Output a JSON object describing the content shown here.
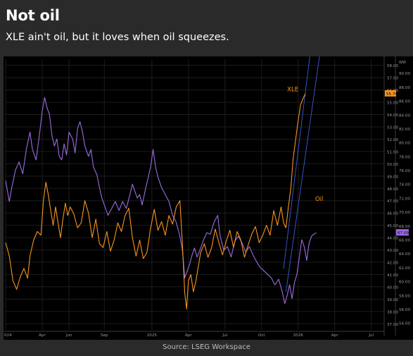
{
  "header": {
    "title": "Not oil",
    "subtitle": "XLE ain't oil, but it loves when oil squeezes."
  },
  "footer": {
    "source": "Source: LSEG Workspace"
  },
  "colors": {
    "background": "#2a2a2a",
    "chart_bg": "#000000",
    "xle": "#f7941d",
    "oil": "#9a6ce0",
    "trend": "#3a5bd9"
  },
  "chart_data": {
    "type": "line",
    "xlabel": "",
    "x_ticks": [
      "024",
      "Apr",
      "Jun",
      "Sep",
      "2025",
      "Apr",
      "Jul",
      "Oct",
      "2026",
      "Apr",
      "Jul"
    ],
    "x_range_months": [
      0,
      31
    ],
    "grid": true,
    "y_left_axis": {
      "side": "right-inner",
      "range": [
        36.5,
        58.5
      ],
      "ticks": [
        "37.00",
        "38.00",
        "39.00",
        "40.00",
        "41.00",
        "42.00",
        "43.00",
        "44.00",
        "45.00",
        "46.00",
        "47.00",
        "48.00",
        "49.00",
        "50.00",
        "51.00",
        "52.00",
        "53.00",
        "54.00",
        "55.00",
        "56.00",
        "57.00",
        "58.00"
      ]
    },
    "y_right_axis": {
      "side": "right-outer",
      "range": [
        53,
        92
      ],
      "ticks": [
        "54.00",
        "56.00",
        "58.00",
        "60.00",
        "62.00",
        "64.00",
        "66.00",
        "68.00",
        "70.00",
        "72.00",
        "74.00",
        "76.00",
        "78.00",
        "80.00",
        "82.00",
        "84.00",
        "86.00",
        "88.00",
        "90.00"
      ],
      "header": "WW"
    },
    "series": [
      {
        "name": "XLE",
        "axis": "left",
        "last_value_label": "55.70",
        "points": [
          [
            0,
            43.6
          ],
          [
            0.3,
            42.5
          ],
          [
            0.6,
            40.5
          ],
          [
            0.9,
            39.8
          ],
          [
            1.2,
            40.8
          ],
          [
            1.5,
            41.5
          ],
          [
            1.8,
            40.7
          ],
          [
            2.0,
            42.5
          ],
          [
            2.3,
            43.8
          ],
          [
            2.6,
            44.5
          ],
          [
            2.9,
            44.2
          ],
          [
            3.1,
            47.0
          ],
          [
            3.3,
            48.5
          ],
          [
            3.5,
            47.5
          ],
          [
            3.7,
            46.2
          ],
          [
            3.9,
            45.0
          ],
          [
            4.1,
            46.5
          ],
          [
            4.3,
            45.2
          ],
          [
            4.5,
            44.0
          ],
          [
            4.7,
            45.5
          ],
          [
            4.9,
            46.8
          ],
          [
            5.1,
            45.8
          ],
          [
            5.3,
            46.5
          ],
          [
            5.6,
            45.9
          ],
          [
            5.9,
            44.8
          ],
          [
            6.2,
            45.2
          ],
          [
            6.5,
            47.0
          ],
          [
            6.8,
            46.0
          ],
          [
            7.1,
            44.0
          ],
          [
            7.4,
            45.5
          ],
          [
            7.7,
            43.5
          ],
          [
            8.0,
            43.2
          ],
          [
            8.3,
            44.5
          ],
          [
            8.6,
            42.9
          ],
          [
            8.9,
            43.8
          ],
          [
            9.2,
            45.2
          ],
          [
            9.5,
            44.5
          ],
          [
            9.8,
            45.8
          ],
          [
            10.1,
            46.4
          ],
          [
            10.4,
            44.0
          ],
          [
            10.7,
            42.5
          ],
          [
            11.0,
            43.8
          ],
          [
            11.3,
            42.3
          ],
          [
            11.6,
            42.8
          ],
          [
            11.9,
            44.8
          ],
          [
            12.2,
            46.3
          ],
          [
            12.5,
            44.6
          ],
          [
            12.8,
            45.3
          ],
          [
            13.1,
            44.2
          ],
          [
            13.4,
            45.8
          ],
          [
            13.7,
            45.1
          ],
          [
            14.0,
            46.5
          ],
          [
            14.3,
            47.0
          ],
          [
            14.5,
            43.5
          ],
          [
            14.7,
            39.5
          ],
          [
            14.85,
            38.2
          ],
          [
            15.0,
            40.5
          ],
          [
            15.2,
            41.0
          ],
          [
            15.4,
            39.6
          ],
          [
            15.6,
            40.4
          ],
          [
            15.8,
            41.6
          ],
          [
            16.0,
            42.8
          ],
          [
            16.3,
            43.5
          ],
          [
            16.6,
            42.4
          ],
          [
            16.9,
            43.2
          ],
          [
            17.2,
            44.7
          ],
          [
            17.5,
            43.6
          ],
          [
            17.8,
            42.6
          ],
          [
            18.1,
            43.7
          ],
          [
            18.4,
            44.6
          ],
          [
            18.7,
            43.2
          ],
          [
            19.0,
            44.5
          ],
          [
            19.3,
            43.8
          ],
          [
            19.6,
            42.4
          ],
          [
            19.9,
            43.4
          ],
          [
            20.2,
            44.3
          ],
          [
            20.5,
            44.9
          ],
          [
            20.8,
            43.6
          ],
          [
            21.1,
            44.2
          ],
          [
            21.4,
            45.0
          ],
          [
            21.7,
            44.2
          ],
          [
            22.0,
            46.2
          ],
          [
            22.3,
            45.0
          ],
          [
            22.6,
            46.5
          ],
          [
            22.8,
            45.2
          ],
          [
            23.0,
            44.8
          ],
          [
            23.2,
            46.5
          ],
          [
            23.4,
            48.0
          ],
          [
            23.6,
            50.5
          ],
          [
            23.8,
            52.0
          ],
          [
            24.0,
            53.5
          ],
          [
            24.2,
            54.8
          ],
          [
            24.4,
            55.3
          ],
          [
            24.6,
            55.7
          ]
        ]
      },
      {
        "name": "Oil",
        "axis": "right",
        "points": [
          [
            0,
            74.5
          ],
          [
            0.3,
            71.5
          ],
          [
            0.5,
            73.5
          ],
          [
            0.8,
            76.0
          ],
          [
            1.1,
            77.2
          ],
          [
            1.4,
            75.5
          ],
          [
            1.7,
            79.0
          ],
          [
            2.0,
            81.5
          ],
          [
            2.2,
            79.0
          ],
          [
            2.5,
            77.5
          ],
          [
            2.8,
            81.5
          ],
          [
            3.0,
            84.5
          ],
          [
            3.2,
            86.5
          ],
          [
            3.4,
            85.0
          ],
          [
            3.6,
            84.0
          ],
          [
            3.8,
            81.0
          ],
          [
            4.0,
            79.5
          ],
          [
            4.2,
            80.5
          ],
          [
            4.4,
            78.0
          ],
          [
            4.6,
            77.5
          ],
          [
            4.8,
            79.8
          ],
          [
            5.0,
            78.2
          ],
          [
            5.2,
            81.5
          ],
          [
            5.5,
            80.5
          ],
          [
            5.7,
            78.5
          ],
          [
            5.9,
            82.0
          ],
          [
            6.1,
            83.0
          ],
          [
            6.3,
            81.6
          ],
          [
            6.5,
            79.5
          ],
          [
            6.8,
            78.0
          ],
          [
            7.0,
            79.0
          ],
          [
            7.2,
            76.5
          ],
          [
            7.5,
            75.3
          ],
          [
            7.7,
            73.5
          ],
          [
            7.9,
            72.0
          ],
          [
            8.1,
            71.0
          ],
          [
            8.4,
            69.5
          ],
          [
            8.7,
            70.5
          ],
          [
            9.0,
            71.5
          ],
          [
            9.3,
            70.2
          ],
          [
            9.6,
            71.5
          ],
          [
            9.9,
            70.5
          ],
          [
            10.2,
            72.5
          ],
          [
            10.4,
            74.0
          ],
          [
            10.6,
            73.0
          ],
          [
            10.8,
            72.0
          ],
          [
            11.0,
            72.5
          ],
          [
            11.2,
            71.0
          ],
          [
            11.5,
            73.5
          ],
          [
            11.7,
            75.0
          ],
          [
            11.9,
            76.5
          ],
          [
            12.1,
            79.0
          ],
          [
            12.3,
            76.5
          ],
          [
            12.5,
            75.0
          ],
          [
            12.8,
            73.5
          ],
          [
            13.1,
            72.5
          ],
          [
            13.4,
            71.5
          ],
          [
            13.7,
            69.5
          ],
          [
            14.0,
            68.5
          ],
          [
            14.3,
            66.5
          ],
          [
            14.5,
            64.5
          ],
          [
            14.7,
            60.5
          ],
          [
            14.9,
            61.5
          ],
          [
            15.1,
            62.5
          ],
          [
            15.3,
            63.8
          ],
          [
            15.5,
            64.8
          ],
          [
            15.7,
            63.5
          ],
          [
            15.9,
            64.3
          ],
          [
            16.2,
            65.8
          ],
          [
            16.5,
            67.0
          ],
          [
            16.8,
            66.8
          ],
          [
            17.1,
            68.5
          ],
          [
            17.4,
            69.5
          ],
          [
            17.6,
            66.5
          ],
          [
            17.9,
            64.5
          ],
          [
            18.2,
            65.0
          ],
          [
            18.5,
            63.5
          ],
          [
            18.8,
            65.8
          ],
          [
            19.1,
            66.5
          ],
          [
            19.4,
            65.5
          ],
          [
            19.7,
            64.2
          ],
          [
            20.0,
            65.0
          ],
          [
            20.3,
            63.8
          ],
          [
            20.6,
            62.8
          ],
          [
            20.9,
            62.0
          ],
          [
            21.2,
            61.5
          ],
          [
            21.5,
            61.0
          ],
          [
            21.8,
            60.5
          ],
          [
            22.1,
            59.5
          ],
          [
            22.4,
            60.3
          ],
          [
            22.7,
            58.5
          ],
          [
            22.9,
            56.8
          ],
          [
            23.1,
            58.0
          ],
          [
            23.3,
            59.5
          ],
          [
            23.5,
            57.5
          ],
          [
            23.7,
            59.8
          ],
          [
            23.9,
            61.0
          ],
          [
            24.1,
            63.5
          ],
          [
            24.3,
            66.0
          ],
          [
            24.5,
            65.0
          ],
          [
            24.7,
            63.0
          ],
          [
            24.9,
            65.5
          ],
          [
            25.1,
            66.5
          ],
          [
            25.3,
            66.8
          ],
          [
            25.5,
            67.0
          ]
        ]
      }
    ],
    "annotations": [
      {
        "text": "XLE",
        "color": "#f7941d"
      },
      {
        "text": "Oil",
        "color": "#f7941d"
      }
    ],
    "oil_last_value_label": "67.09"
  }
}
